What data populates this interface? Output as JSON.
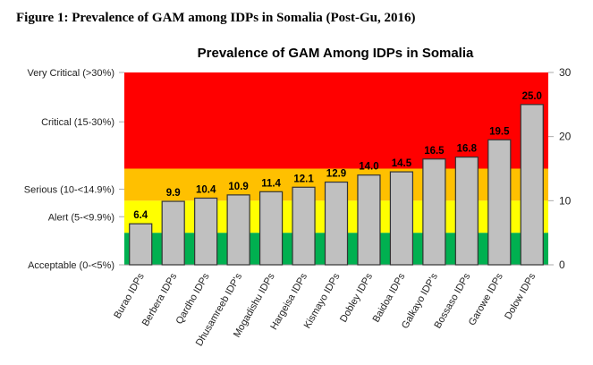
{
  "figure_title": "Figure 1: Prevalence of GAM among IDPs in Somalia (Post-Gu, 2016)",
  "chart_data": {
    "type": "bar",
    "title": "Prevalence  of GAM Among IDPs in Somalia",
    "categories": [
      "Burao IDPs",
      "Berbera IDPs",
      "Qardho IDPs",
      "Dhusamreeb IDP's",
      "Mogadishu IDPs",
      "Hargeisa IDPs",
      "Kismayo IDPs",
      "Dobley IDPs",
      "Baidoa IDPs",
      "Galkayo IDP's",
      "Bossaso IDPs",
      "Garowe IDPs",
      "Dolow IDPs"
    ],
    "values": [
      6.4,
      9.9,
      10.4,
      10.9,
      11.4,
      12.1,
      12.9,
      14.0,
      14.5,
      16.5,
      16.8,
      19.5,
      25.0
    ],
    "data_labels": [
      "6.4",
      "9.9",
      "10.4",
      "10.9",
      "11.4",
      "12.1",
      "12.9",
      "14.0",
      "14.5",
      "16.5",
      "16.8",
      "19.5",
      "25.0"
    ],
    "ylim": [
      0,
      30
    ],
    "right_ticks": [
      "0",
      "10",
      "20",
      "30"
    ],
    "bar_color": "#c0c0c0",
    "bands": [
      {
        "label": "Acceptable (0-<5%)",
        "from": 0,
        "to": 5,
        "color": "#00b050",
        "label_at": 0
      },
      {
        "label": "Alert (5-<9.9%)",
        "from": 5,
        "to": 10,
        "color": "#ffff00",
        "label_at": 7.5
      },
      {
        "label": "Serious (10-<14.9%)",
        "from": 10,
        "to": 15,
        "color": "#ffc000",
        "label_at": 11.8
      },
      {
        "label": "Critical (15-30%)",
        "from": 15,
        "to": 30,
        "color": "#ff0000",
        "label_at": 22.3
      },
      {
        "label": "Very Critical (>30%)",
        "from": 30,
        "to": 30,
        "color": "#ff0000",
        "label_at": 30
      }
    ]
  }
}
